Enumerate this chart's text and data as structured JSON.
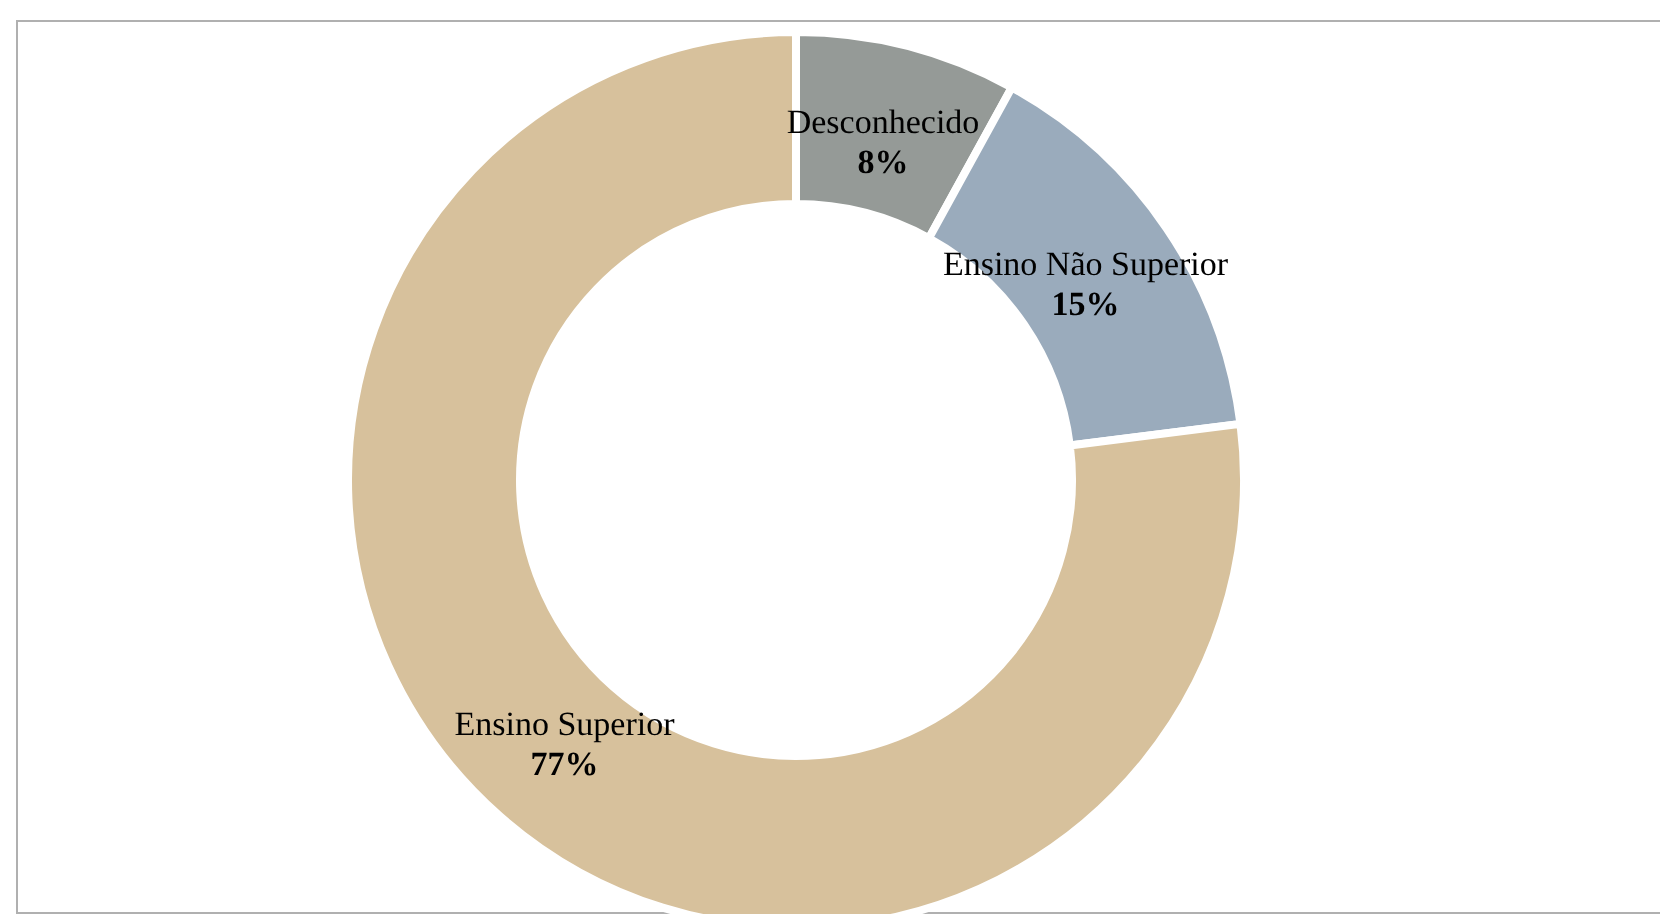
{
  "chart_data": {
    "type": "donut",
    "categories": [
      "Desconhecido",
      "Ensino Não Superior",
      "Ensino Superior"
    ],
    "values": [
      8,
      15,
      77
    ],
    "value_labels": [
      "8%",
      "15%",
      "77%"
    ],
    "colors": [
      "#959a97",
      "#9aabbc",
      "#d7c19c"
    ],
    "legend": false
  }
}
